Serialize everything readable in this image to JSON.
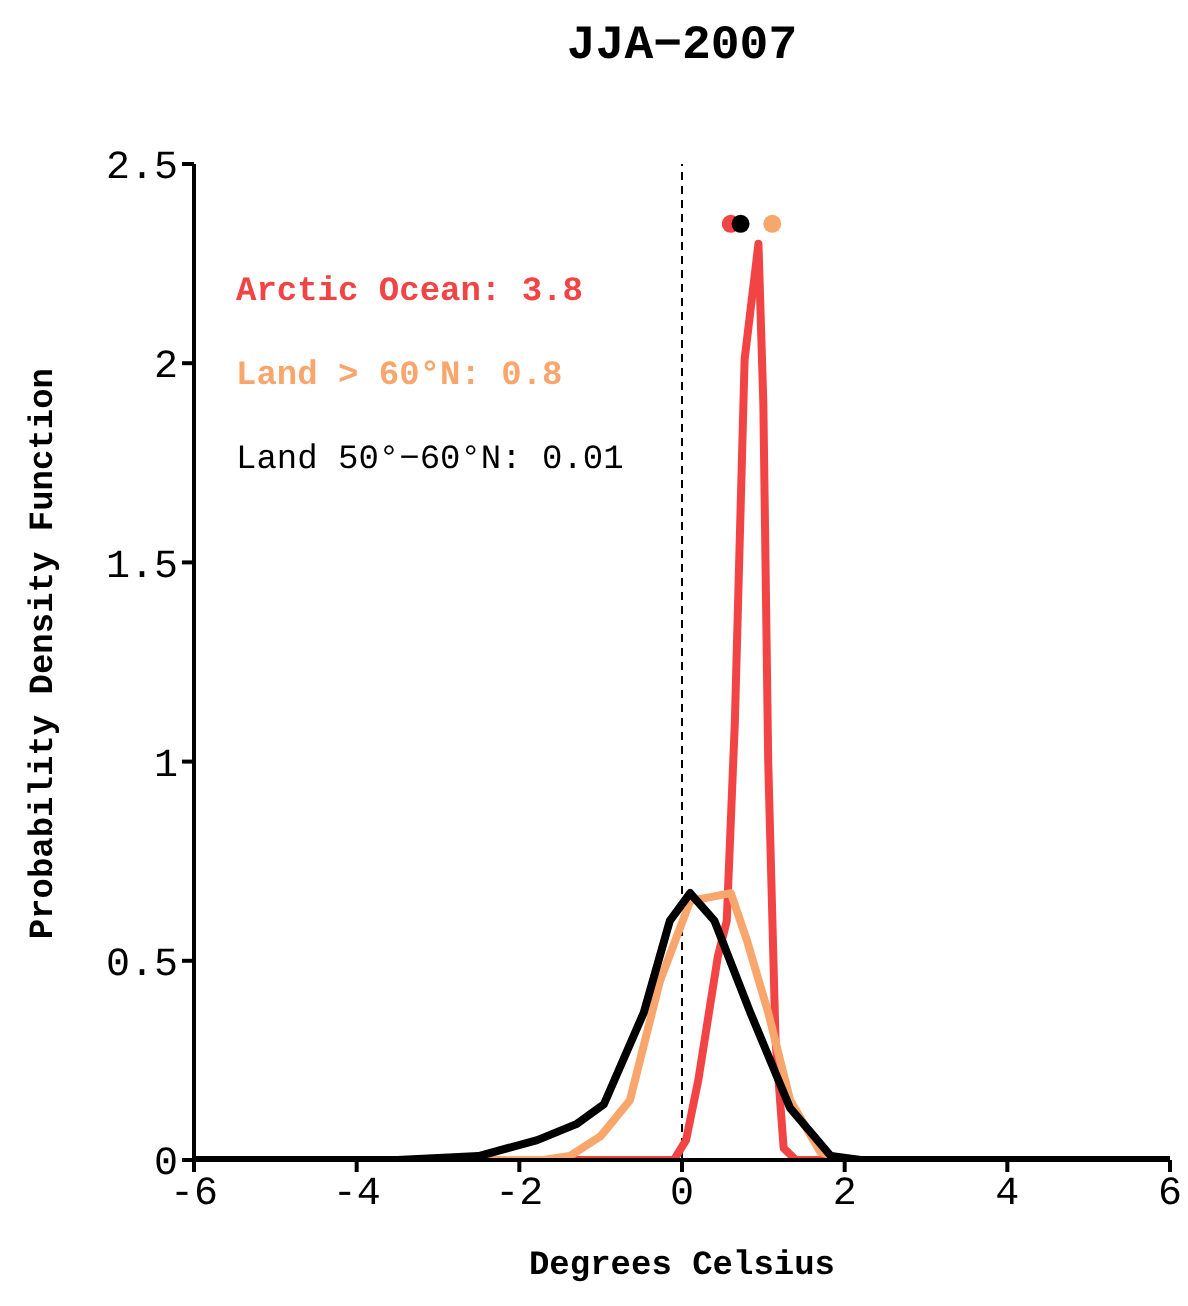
{
  "chart_data": {
    "type": "line",
    "title": "JJA−2007",
    "xlabel": "Degrees Celsius",
    "ylabel": "Probability Density Function",
    "xlim": [
      -6,
      6
    ],
    "xticks": [
      -6,
      -4,
      -2,
      0,
      2,
      4,
      6
    ],
    "ylim": [
      0,
      2.5
    ],
    "yticks": [
      0,
      0.5,
      1,
      1.5,
      2,
      2.5
    ],
    "grid": false,
    "legend": "top left",
    "line_style": "solid",
    "marker": "none",
    "ref_lines": [
      {
        "axis": "x",
        "value": 0,
        "line_style": "dashed",
        "color": "#000000"
      }
    ],
    "series": [
      {
        "name": "Arctic Ocean: 3.8",
        "color": "#f24444",
        "x": [
          -6,
          -0.1,
          0.05,
          0.2,
          0.44,
          0.55,
          0.65,
          0.77,
          0.94,
          1.0,
          1.06,
          1.15,
          1.25,
          1.4,
          6
        ],
        "values": [
          0,
          0,
          0.05,
          0.2,
          0.51,
          0.6,
          1.1,
          2.01,
          2.3,
          1.9,
          1.0,
          0.3,
          0.03,
          0,
          0
        ]
      },
      {
        "name": "Land > 60°N: 0.8",
        "color": "#f9a66c",
        "x": [
          -6,
          -1.7,
          -1.38,
          -1.0,
          -0.64,
          -0.27,
          0.1,
          0.35,
          0.6,
          0.8,
          1.06,
          1.33,
          1.7,
          2.0,
          6
        ],
        "values": [
          0,
          0,
          0.01,
          0.06,
          0.15,
          0.45,
          0.65,
          0.66,
          0.67,
          0.55,
          0.37,
          0.15,
          0.02,
          0,
          0
        ]
      },
      {
        "name": "Land 50°−60°N: 0.01",
        "color": "#000000",
        "x": [
          -6,
          -3.5,
          -2.5,
          -1.78,
          -1.3,
          -0.96,
          -0.47,
          -0.15,
          0.1,
          0.4,
          0.84,
          1.33,
          1.83,
          2.2,
          6
        ],
        "values": [
          0,
          0,
          0.01,
          0.05,
          0.09,
          0.14,
          0.37,
          0.6,
          0.67,
          0.6,
          0.37,
          0.13,
          0.01,
          0,
          0
        ]
      },
      {
        "type": "scatter",
        "color": "#f24444",
        "marker": "circle",
        "x": [
          0.6
        ],
        "values": [
          2.35
        ]
      },
      {
        "type": "scatter",
        "color": "#000000",
        "marker": "circle",
        "x": [
          0.72
        ],
        "values": [
          2.35
        ]
      },
      {
        "type": "scatter",
        "color": "#f9a66c",
        "marker": "circle",
        "x": [
          1.11
        ],
        "values": [
          2.35
        ]
      }
    ]
  }
}
